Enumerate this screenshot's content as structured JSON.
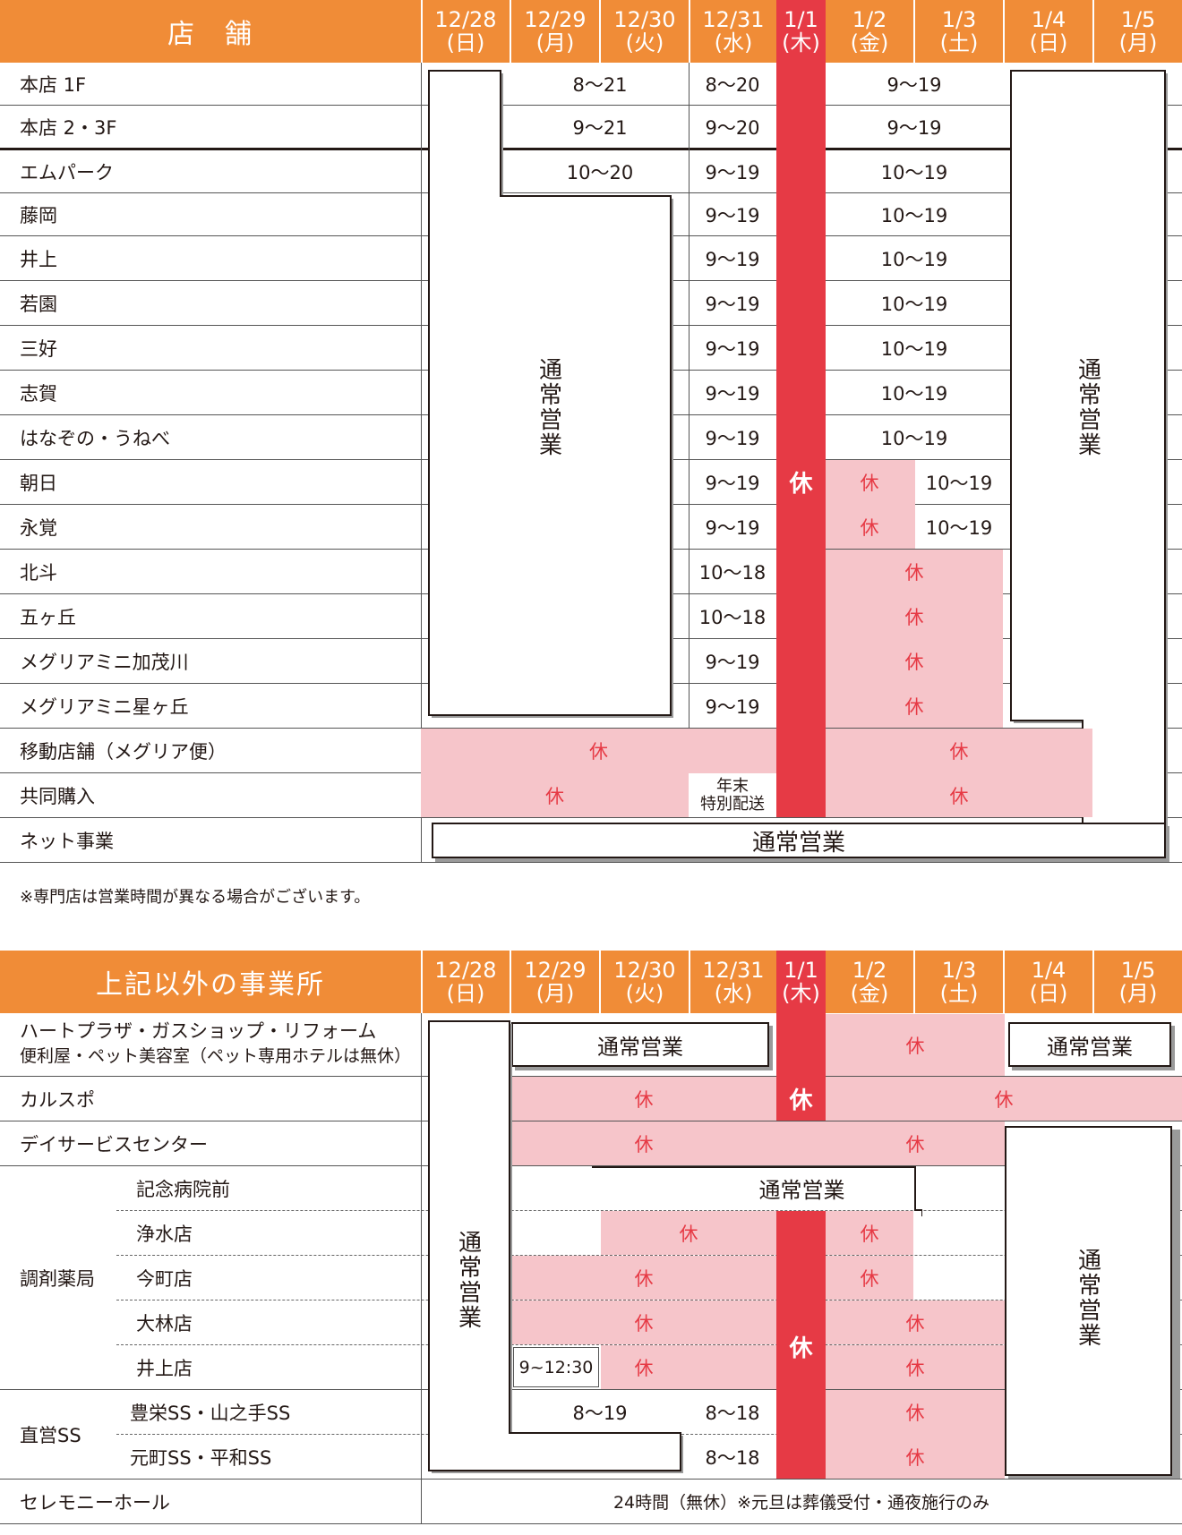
{
  "table1": {
    "header_label": "店　舗",
    "days": [
      {
        "date": "12/28",
        "dow": "(日)"
      },
      {
        "date": "12/29",
        "dow": "(月)"
      },
      {
        "date": "12/30",
        "dow": "(火)"
      },
      {
        "date": "12/31",
        "dow": "(水)"
      },
      {
        "date": "1/1",
        "dow": "(木)"
      },
      {
        "date": "1/2",
        "dow": "(金)"
      },
      {
        "date": "1/3",
        "dow": "(土)"
      },
      {
        "date": "1/4",
        "dow": "(日)"
      },
      {
        "date": "1/5",
        "dow": "(月)"
      }
    ],
    "rows": [
      {
        "name": "本店 1F",
        "period_dec29_30": "8〜21",
        "dec31": "8〜20",
        "jan2_3": "9〜19"
      },
      {
        "name": "本店 2・3F",
        "period_dec29_30": "9〜21",
        "dec31": "9〜20",
        "jan2_3": "9〜19"
      },
      {
        "name": "エムパーク",
        "period_dec29_30": "10〜20",
        "dec31": "9〜19",
        "jan2_3": "10〜19"
      },
      {
        "name": "藤岡",
        "dec31": "9〜19",
        "jan2_3": "10〜19"
      },
      {
        "name": "井上",
        "dec31": "9〜19",
        "jan2_3": "10〜19"
      },
      {
        "name": "若園",
        "dec31": "9〜19",
        "jan2_3": "10〜19"
      },
      {
        "name": "三好",
        "dec31": "9〜19",
        "jan2_3": "10〜19"
      },
      {
        "name": "志賀",
        "dec31": "9〜19",
        "jan2_3": "10〜19"
      },
      {
        "name": "はなぞの・うねべ",
        "dec31": "9〜19",
        "jan2_3": "10〜19"
      },
      {
        "name": "朝日",
        "dec31": "9〜19",
        "jan2": "休",
        "jan3": "10〜19"
      },
      {
        "name": "永覚",
        "dec31": "9〜19",
        "jan2": "休",
        "jan3": "10〜19"
      },
      {
        "name": "北斗",
        "dec31": "10〜18",
        "jan2_3": "休"
      },
      {
        "name": "五ヶ丘",
        "dec31": "10〜18",
        "jan2_3": "休"
      },
      {
        "name": "メグリアミニ加茂川",
        "dec31": "9〜19",
        "jan2_3": "休"
      },
      {
        "name": "メグリアミニ星ヶ丘",
        "dec31": "9〜19",
        "jan2_3": "休"
      },
      {
        "name": "移動店舗（メグリア便）",
        "before": "休",
        "after": "休"
      },
      {
        "name": "共同購入",
        "before": "休",
        "dec31_line1": "年末",
        "dec31_line2": "特別配送",
        "after": "休"
      },
      {
        "name": "ネット事業",
        "all": "通常営業"
      }
    ],
    "normal_left": "通常営業",
    "normal_right": "通常営業",
    "closed_jan1": "休",
    "footnote": "※専門店は営業時間が異なる場合がございます。"
  },
  "table2": {
    "header_label": "上記以外の事業所",
    "rows": {
      "heart_line1": "ハートプラザ・ガスショップ・リフォーム",
      "heart_line2": "便利屋・ペット美容室（ペット専用ホテルは無休）",
      "heart_mid": "通常営業",
      "heart_jan2_3": "休",
      "heart_right": "通常営業",
      "karuspo": "カルスポ",
      "karuspo_before": "休",
      "karuspo_after": "休",
      "day_service": "デイサービスセンター",
      "day_before": "休",
      "day_after": "休",
      "pharmacy_group": "調剤薬局",
      "pharmacy_kinen": "記念病院前",
      "pharmacy_kinen_value": "通常営業",
      "pharmacy_jyosui": "浄水店",
      "jyosui_before": "休",
      "jyosui_after": "休",
      "pharmacy_imamachi": "今町店",
      "imamachi_before": "休",
      "imamachi_after": "休",
      "pharmacy_obayashi": "大林店",
      "obayashi_before": "休",
      "obayashi_after": "休",
      "pharmacy_inoue": "井上店",
      "inoue_dec29": "9~12:30",
      "inoue_before": "休",
      "inoue_after": "休",
      "ss_group": "直営SS",
      "ss_toei": "豊栄SS・山之手SS",
      "toei_dec29_30": "8〜19",
      "toei_dec31": "8〜18",
      "toei_after": "休",
      "ss_motomachi": "元町SS・平和SS",
      "motomachi_dec31": "8〜18",
      "motomachi_after": "休",
      "ceremony": "セレモニーホール",
      "ceremony_value": "24時間（無休）※元旦は葬儀受付・通夜施行のみ"
    },
    "normal_left": "通常営業",
    "normal_right": "通常営業",
    "closed_jan1": "休"
  },
  "colors": {
    "header_orange": "#f08c37",
    "closed_red": "#e63a45",
    "closed_pink": "#f6c5ca"
  }
}
